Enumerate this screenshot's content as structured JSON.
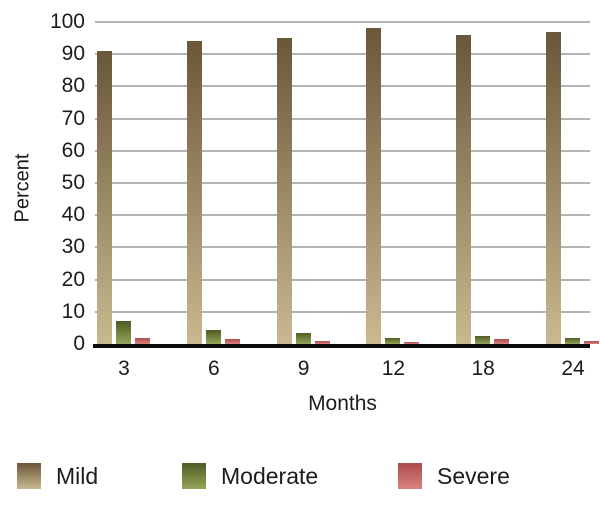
{
  "chart_data": {
    "type": "bar",
    "title": "",
    "xlabel": "Months",
    "ylabel": "Percent",
    "categories": [
      "3",
      "6",
      "9",
      "12",
      "18",
      "24"
    ],
    "series": [
      {
        "name": "Mild",
        "values": [
          91,
          94,
          95,
          98,
          96,
          97
        ],
        "color_top": "#6a573a",
        "color_bottom": "#c9b990"
      },
      {
        "name": "Moderate",
        "values": [
          7,
          4.5,
          3.5,
          2,
          2.5,
          2
        ],
        "color_top": "#4e5c25",
        "color_bottom": "#95a558"
      },
      {
        "name": "Severe",
        "values": [
          2,
          1.5,
          1,
          0.5,
          1.5,
          1
        ],
        "color_top": "#ae4b4e",
        "color_bottom": "#d8837f"
      }
    ],
    "ylim": [
      0,
      100
    ],
    "yticks": [
      0,
      10,
      20,
      30,
      40,
      50,
      60,
      70,
      80,
      90,
      100
    ],
    "grid": true,
    "gridline_color": "#b3b3b3",
    "axis_line_color": "#0b0b0b",
    "legend_position": "bottom"
  },
  "legend": {
    "items": [
      "Mild",
      "Moderate",
      "Severe"
    ]
  }
}
